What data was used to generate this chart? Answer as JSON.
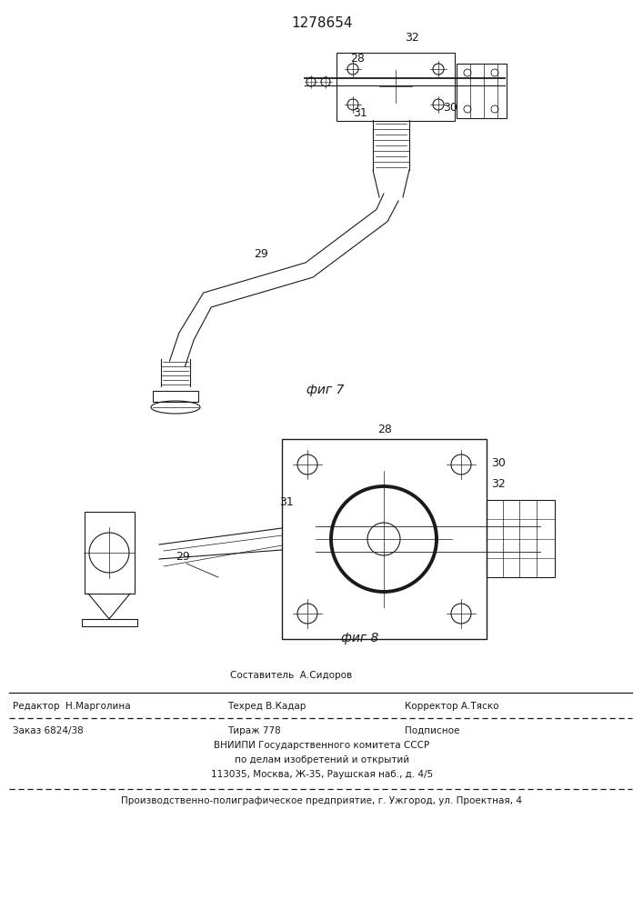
{
  "title": "1278654",
  "fig7_label": "фиг 7",
  "fig8_label": "фиг 8",
  "footer_sestavitel": "Составитель  А.Сидоров",
  "footer_line1_left": "Редактор  Н.Марголина",
  "footer_line1_mid": "Техред В.Кадар",
  "footer_line1_right": "Корректор А.Тяско",
  "footer_line2_left": "Заказ 6824/38",
  "footer_line2_mid": "Тираж 778",
  "footer_line2_right": "Подписное",
  "footer_vniishi": "ВНИИПИ Государственного комитета СССР",
  "footer_po": "по делам изобретений и открытий",
  "footer_addr": "113035, Москва, Ж-35, Раушская наб., д. 4/5",
  "footer_factory": "Производственно-полиграфическое предприятие, г. Ужгород, ул. Проектная, 4",
  "bg_color": "#ffffff",
  "line_color": "#1a1a1a"
}
